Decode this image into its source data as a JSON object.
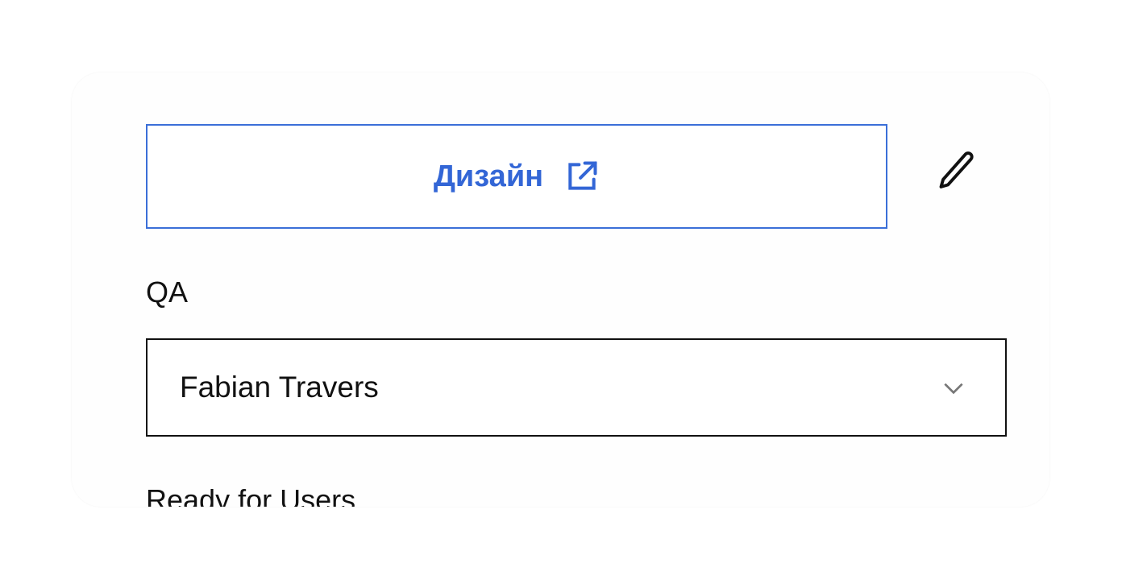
{
  "design_link": {
    "label": "Дизайн",
    "icon": "external-link-icon",
    "color": "#3366d6"
  },
  "edit_icon": "pencil-icon",
  "qa": {
    "label": "QA",
    "selected": "Fabian Travers",
    "icon": "chevron-down-icon"
  },
  "next_section": {
    "label": "Ready for Users"
  }
}
